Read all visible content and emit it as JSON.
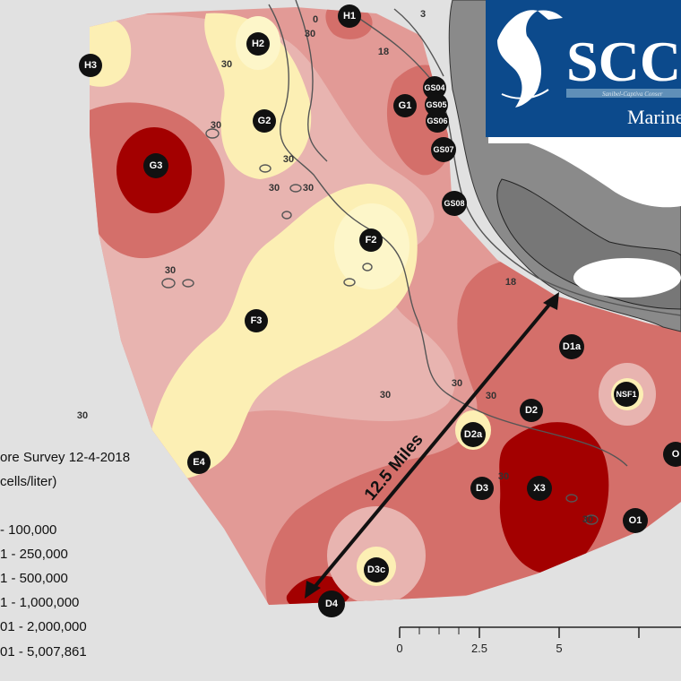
{
  "map": {
    "legend": {
      "title": "ore Survey 12-4-2018",
      "units": "cells/liter)",
      "ranges": [
        {
          "label": "- 100,000",
          "color": "#fcefb4"
        },
        {
          "label": "1 - 250,000",
          "color": "#e8b4b0"
        },
        {
          "label": "1 - 500,000",
          "color": "#e29a96"
        },
        {
          "label": "1 - 1,000,000",
          "color": "#d46f6a"
        },
        {
          "label": "01 - 2,000,000",
          "color": "#c24840"
        },
        {
          "label": "01 - 5,007,861",
          "color": "#a30000"
        }
      ]
    },
    "stations": [
      "H1",
      "H2",
      "H3",
      "G1",
      "G2",
      "G3",
      "GS04",
      "GS05",
      "GS06",
      "GS07",
      "GS08",
      "F2",
      "F3",
      "D1a",
      "NSF1",
      "D2",
      "D2a",
      "D3",
      "X3",
      "O",
      "O1",
      "D3c",
      "D4",
      "E4"
    ],
    "contour_labels": [
      "30",
      "30",
      "30",
      "30",
      "30",
      "30",
      "30",
      "30",
      "30",
      "30",
      "30",
      "30",
      "30",
      "18",
      "18",
      "3",
      "0"
    ],
    "distance_label": "12.5 Miles",
    "scale_bar": {
      "ticks": [
        "0",
        "2.5",
        "5"
      ]
    },
    "logo": {
      "text": "SCC",
      "tagline": "Sanibel-Captiva Conser",
      "subtitle": "Marine"
    }
  }
}
